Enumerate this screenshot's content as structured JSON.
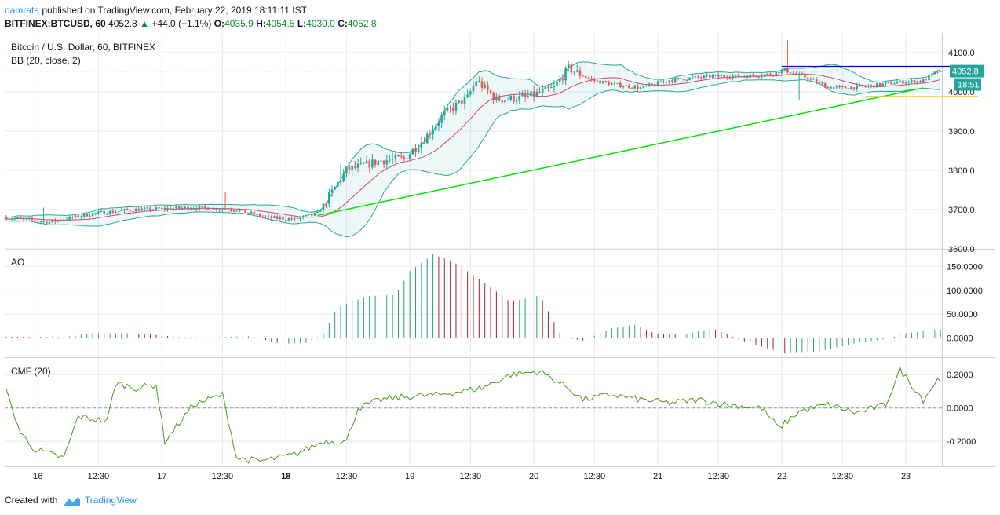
{
  "header": {
    "user": "namrata",
    "published_text": "published on TradingView.com, February 22, 2019 18:11:11 IST",
    "symbol": "BITFINEX:BTCUSD, 60",
    "last": "4052.8",
    "change_arrow": "▲",
    "change": "+44.0 (+1.1%)",
    "o_label": "O:",
    "o_value": "4035.9",
    "h_label": "H:",
    "h_value": "4054.5",
    "l_label": "L:",
    "l_value": "4030.0",
    "c_label": "C:",
    "c_value": "4052.8"
  },
  "footer": {
    "created_text": "Created with",
    "brand": "TradingView",
    "logo_icon": "tradingview-logo-icon"
  },
  "colors": {
    "up": "#26a69a",
    "down": "#ef5350",
    "band": "#26a69a",
    "basis": "#c2185b",
    "trend": "#00e600",
    "blueline": "#0000cc",
    "yellowline": "#e6d200",
    "ao_up": "#26a669",
    "ao_down": "#a52727",
    "cmf": "#4a9a1b",
    "grid": "#e6e9ee"
  },
  "chart_data": [
    {
      "type": "line",
      "subtype": "candlestick",
      "title": "Bitcoin / U.S. Dollar, 60, BITFINEX",
      "indicator": "BB (20, close, 2)",
      "ylim": [
        3600,
        4150
      ],
      "yticks": [
        3600,
        3700,
        3800,
        3900,
        4000,
        4100
      ],
      "ytick_labels": [
        "3600.0",
        "3700.0",
        "3800.0",
        "3900.0",
        "4000.0",
        "4100.0"
      ],
      "price_tag": "4052.8",
      "time_tag": "18:51",
      "price_line": 4052.8,
      "keypoints": [
        [
          0,
          3680
        ],
        [
          15,
          3668
        ],
        [
          30,
          3690
        ],
        [
          45,
          3700
        ],
        [
          65,
          3705
        ],
        [
          80,
          3700
        ],
        [
          90,
          3680
        ],
        [
          100,
          3675
        ],
        [
          108,
          3690
        ],
        [
          118,
          3800
        ],
        [
          130,
          3825
        ],
        [
          138,
          3830
        ],
        [
          145,
          3880
        ],
        [
          152,
          3945
        ],
        [
          160,
          3985
        ],
        [
          163,
          4030
        ],
        [
          170,
          3980
        ],
        [
          180,
          3985
        ],
        [
          190,
          4010
        ],
        [
          195,
          4060
        ],
        [
          203,
          4030
        ],
        [
          210,
          4020
        ],
        [
          220,
          4010
        ],
        [
          230,
          4030
        ],
        [
          245,
          4040
        ],
        [
          255,
          4040
        ],
        [
          265,
          4045
        ],
        [
          270,
          4055
        ],
        [
          278,
          4035
        ],
        [
          285,
          4012
        ],
        [
          292,
          4010
        ],
        [
          300,
          4015
        ],
        [
          310,
          4025
        ],
        [
          318,
          4028
        ],
        [
          323,
          4052
        ]
      ],
      "trendline": [
        [
          3680,
          3680
        ],
        [
          3700,
          3700
        ]
      ],
      "green_trend": [
        [
          108,
          3685
        ],
        [
          318,
          4010
        ]
      ],
      "blue_line": [
        [
          269,
          4065
        ],
        [
          337,
          4065
        ]
      ],
      "yellow_line": [
        [
          298,
          3988
        ],
        [
          337,
          3988
        ]
      ],
      "xtick_labels": [
        "16",
        "12:30",
        "17",
        "12:30",
        "18",
        "12:30",
        "19",
        "12:30",
        "20",
        "12:30",
        "21",
        "12:30",
        "22",
        "12:30",
        "23"
      ],
      "xtick_bars": [
        11,
        32,
        54,
        75,
        97,
        118,
        140,
        161,
        183,
        204,
        226,
        247,
        269,
        290,
        312
      ],
      "bold_xtick": "18"
    },
    {
      "type": "bar",
      "title": "AO",
      "ylim": [
        -40,
        185
      ],
      "yticks": [
        0,
        50,
        100,
        150
      ],
      "ytick_labels": [
        "0.0000",
        "50.0000",
        "100.0000",
        "150.0000"
      ],
      "keypoints": [
        [
          0,
          3
        ],
        [
          20,
          2
        ],
        [
          30,
          10
        ],
        [
          45,
          10
        ],
        [
          60,
          2
        ],
        [
          70,
          1
        ],
        [
          85,
          4
        ],
        [
          95,
          -12
        ],
        [
          105,
          -10
        ],
        [
          110,
          10
        ],
        [
          115,
          65
        ],
        [
          125,
          88
        ],
        [
          135,
          90
        ],
        [
          140,
          140
        ],
        [
          148,
          175
        ],
        [
          155,
          160
        ],
        [
          165,
          120
        ],
        [
          175,
          75
        ],
        [
          185,
          90
        ],
        [
          193,
          0
        ],
        [
          200,
          -5
        ],
        [
          210,
          20
        ],
        [
          218,
          28
        ],
        [
          225,
          10
        ],
        [
          235,
          8
        ],
        [
          245,
          20
        ],
        [
          255,
          -5
        ],
        [
          270,
          -32
        ],
        [
          280,
          -30
        ],
        [
          295,
          -10
        ],
        [
          305,
          -2
        ],
        [
          312,
          10
        ],
        [
          323,
          18
        ]
      ]
    },
    {
      "type": "line",
      "title": "CMF (20)",
      "ylim": [
        -0.35,
        0.3
      ],
      "yticks": [
        -0.2,
        0,
        0.2
      ],
      "ytick_labels": [
        "-0.2000",
        "0.0000",
        "0.2000"
      ],
      "keypoints": [
        [
          0,
          0.1
        ],
        [
          5,
          -0.15
        ],
        [
          10,
          -0.25
        ],
        [
          20,
          -0.3
        ],
        [
          25,
          -0.05
        ],
        [
          35,
          -0.08
        ],
        [
          38,
          0.15
        ],
        [
          45,
          0.12
        ],
        [
          52,
          0.14
        ],
        [
          55,
          -0.2
        ],
        [
          65,
          0.02
        ],
        [
          75,
          0.08
        ],
        [
          80,
          -0.3
        ],
        [
          88,
          -0.32
        ],
        [
          100,
          -0.28
        ],
        [
          110,
          -0.2
        ],
        [
          118,
          -0.2
        ],
        [
          122,
          0
        ],
        [
          130,
          0.05
        ],
        [
          140,
          0.07
        ],
        [
          150,
          0.08
        ],
        [
          165,
          0.12
        ],
        [
          175,
          0.2
        ],
        [
          185,
          0.22
        ],
        [
          195,
          0.12
        ],
        [
          200,
          0.05
        ],
        [
          210,
          0.08
        ],
        [
          220,
          0.05
        ],
        [
          230,
          0.03
        ],
        [
          240,
          0.05
        ],
        [
          250,
          0.02
        ],
        [
          262,
          0.0
        ],
        [
          268,
          -0.12
        ],
        [
          275,
          -0.02
        ],
        [
          285,
          0.02
        ],
        [
          295,
          -0.03
        ],
        [
          305,
          0.02
        ],
        [
          310,
          0.23
        ],
        [
          318,
          0.05
        ],
        [
          323,
          0.17
        ]
      ]
    }
  ]
}
